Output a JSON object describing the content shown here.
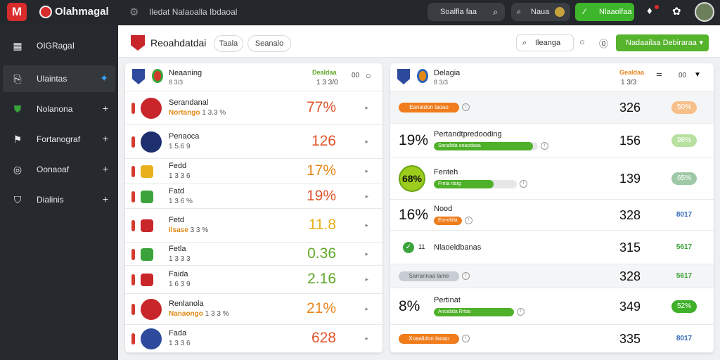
{
  "topbar": {
    "logo": "M",
    "brand": "Olahmagal",
    "crumbs": "Iledat Nalaoalla Ibdaoal",
    "search_label": "Soalfla faa",
    "user_label": "Naua",
    "green_label": "Nlaaolfaa"
  },
  "sidebar": {
    "items": [
      {
        "label": "OIGRagaI",
        "icon": "grid-icon"
      },
      {
        "label": "Ulaintas",
        "icon": "export-icon"
      },
      {
        "label": "Nolanona",
        "icon": "shield-icon"
      },
      {
        "label": "Fortanograf",
        "icon": "flag-icon"
      },
      {
        "label": "Oonaoaf",
        "icon": "ball-icon"
      },
      {
        "label": "Dialinis",
        "icon": "crest-icon"
      }
    ]
  },
  "header": {
    "title": "Reoahdatdai",
    "pill1": "Taala",
    "pill2": "Seanalo",
    "search": "Ileanga",
    "action": "Nadaailaa Debiraraa"
  },
  "left_panel": {
    "head": {
      "title": "Neaaning",
      "sub": "8 3/3",
      "k1": "Dealdaa",
      "k2": "1 3 3/0",
      "k3": "00"
    },
    "rows": [
      {
        "name": "Serandanal",
        "sub_hl": "Nortango",
        "sub": "1 3.3 %",
        "value": "77%",
        "color": "#e0552c"
      },
      {
        "name": "Penaoca",
        "sub": "1 5.6 9",
        "value": "126",
        "color": "#e0552c"
      },
      {
        "name": "Fedd",
        "sub": "1 3 3 6",
        "value": "17%",
        "color": "#e8861c"
      },
      {
        "name": "Fatd",
        "sub": "1 3 6 %",
        "value": "19%",
        "color": "#e0552c"
      },
      {
        "name": "Fetd",
        "sub_hl": "Ilsase",
        "sub": "3 3 %",
        "value": "11.8",
        "color": "#e8b11c"
      },
      {
        "name": "Fetla",
        "sub": "1 3 3 3",
        "value": "0.36",
        "color": "#5fa826"
      },
      {
        "name": "Faida",
        "sub": "1 6 3 9",
        "value": "2.16",
        "color": "#5fa826"
      },
      {
        "name": "Renlanola",
        "sub_hl": "Nanaongo",
        "sub": "1 3 3 %",
        "value": "21%",
        "color": "#e8861c"
      },
      {
        "name": "Fada",
        "sub": "1 3 3 6",
        "value": "628",
        "color": "#e0552c"
      }
    ]
  },
  "right_panel": {
    "head": {
      "title": "Delagia",
      "sub": "8 3/3",
      "k1": "Gealdaa",
      "k2": "1 3/3",
      "k3": "00"
    },
    "rows": [
      {
        "lead": "",
        "pill": "Eanaldon laoao",
        "pill_color": "#f07c1c",
        "label": "",
        "bar_fill": null,
        "bar_label": "",
        "bar_color": "",
        "number": "326",
        "badge": "50%",
        "badge_bg": "#f7c08a",
        "badge_fg": "#ffffff"
      },
      {
        "lead": "19%",
        "pill": "",
        "label": "Pertandtpredooding",
        "bar_fill": 0.95,
        "bar_label": "Sanaltda ooaodaaa",
        "bar_color": "#4fb02a",
        "number": "156",
        "badge": "98%",
        "badge_bg": "#b8e0a0",
        "badge_fg": "#ffffff"
      },
      {
        "lead": "68%",
        "pill": "",
        "label": "Fenteh",
        "bar_fill": 0.72,
        "bar_label": "Frnta rtarg",
        "bar_color": "#4fb02a",
        "bar_head_color": "#f07c1c",
        "number": "139",
        "badge": "65%",
        "badge_bg": "#9ec9a6",
        "badge_fg": "#ffffff"
      },
      {
        "lead": "16%",
        "pill": "",
        "label": "Nood",
        "bar_fill": 1.0,
        "bar_label": "Eonoltda",
        "bar_color": "#f07c1c",
        "number": "328",
        "badge": "8017",
        "badge_bg": "transparent",
        "badge_fg": "#2d64b8"
      },
      {
        "lead": "",
        "pill": "",
        "label": "Nlaoeldbanas",
        "check_num": "11",
        "bar_fill": null,
        "number": "315",
        "badge": "5617",
        "badge_bg": "transparent",
        "badge_fg": "#3aa43a"
      },
      {
        "lead": "",
        "pill": "Sarrannaa lame",
        "pill_color": "#c8cdd3",
        "label": "",
        "bar_fill": null,
        "number": "328",
        "badge": "5617",
        "badge_bg": "transparent",
        "badge_fg": "#3aa43a"
      },
      {
        "lead": "8%",
        "pill": "",
        "label": "Pertinat",
        "bar_fill": 1.0,
        "bar_label": "Anoaltda Rrtao",
        "bar_color": "#4fb02a",
        "number": "349",
        "badge": "52%",
        "badge_bg": "#3fb02a",
        "badge_fg": "#ffffff"
      },
      {
        "lead": "",
        "pill": "Xoaalidon laoao",
        "pill_color": "#f07c1c",
        "label": "",
        "bar_fill": null,
        "number": "335",
        "badge": "8017",
        "badge_bg": "transparent",
        "badge_fg": "#2d64b8"
      }
    ]
  }
}
